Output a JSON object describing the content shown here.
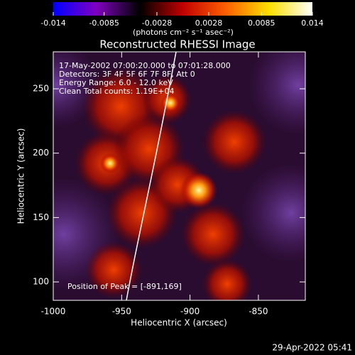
{
  "chart_data": {
    "type": "image",
    "title": "Reconstructed RHESSI Image",
    "xlabel": "Heliocentric X (arcsec)",
    "ylabel": "Heliocentric Y (arcsec)",
    "xlim": [
      -1000,
      -815.7
    ],
    "xticks": [
      -1000,
      -950,
      -900,
      -850
    ],
    "ylim": [
      85.7,
      278.7
    ],
    "yticks": [
      100,
      150,
      200,
      250
    ],
    "colorbar": {
      "label": "(photons cm⁻² s⁻¹ asec⁻²)",
      "clim": [
        -0.014,
        0.014
      ],
      "ticks": [
        -0.014,
        -0.0085,
        -0.0028,
        0.0028,
        0.0085,
        0.014
      ],
      "colors": [
        "#0000ff",
        "#8000c0",
        "#000000",
        "#c00000",
        "#ff6000",
        "#ffe000",
        "#ffffff"
      ]
    },
    "annotations": [
      "17-May-2002 07:00:20.000 to 07:01:28.000",
      "Detectors: 3F 4F 5F 6F 7F 8F, Att 0",
      "Energy Range: 6.0 - 12.0 keV",
      "Clean    Total counts: 1.19E+04"
    ],
    "peak_label": "Position of Peak = [-891,169]",
    "footer": "29-Apr-2022 05:41"
  }
}
